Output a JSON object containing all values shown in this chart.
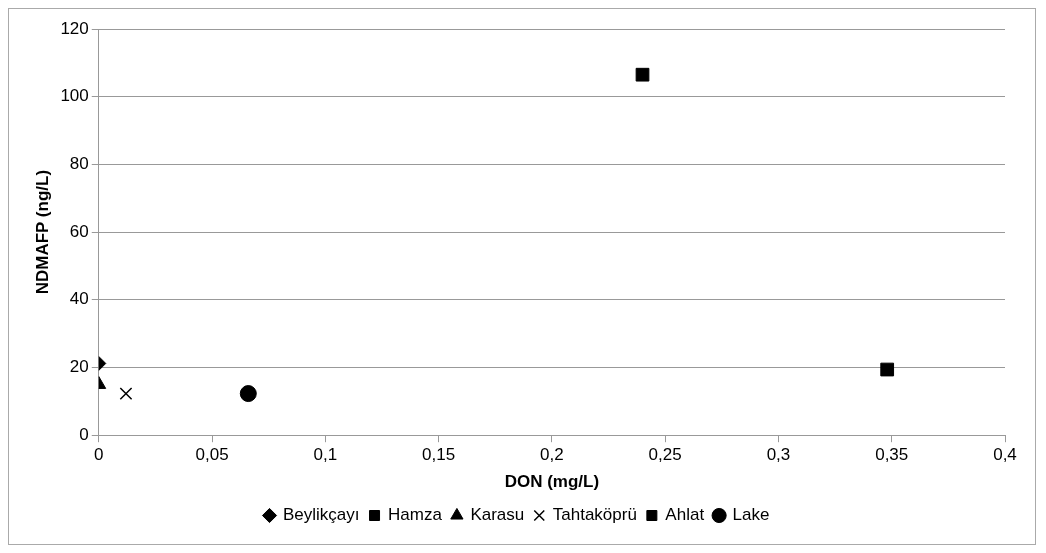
{
  "chart_data": {
    "type": "scatter",
    "xlabel": "DON (mg/L)",
    "ylabel": "NDMAFP (ng/L)",
    "xlim": [
      0,
      0.4
    ],
    "xticks": [
      0,
      {
        "value": 0.05,
        "label": "0,05"
      },
      {
        "value": 0.1,
        "label": "0,1"
      },
      {
        "value": 0.15,
        "label": "0,15"
      },
      {
        "value": 0.2,
        "label": "0,2"
      },
      {
        "value": 0.25,
        "label": "0,25"
      },
      {
        "value": 0.3,
        "label": "0,3"
      },
      {
        "value": 0.35,
        "label": "0,35"
      },
      {
        "value": 0.4,
        "label": "0,4"
      }
    ],
    "ylim": [
      0,
      120
    ],
    "yticks": [
      0,
      20,
      40,
      60,
      80,
      100,
      120
    ],
    "grid": "y",
    "legend": "bottom",
    "series": [
      {
        "name": "Beylikçayı",
        "color": "#000000",
        "marker": "diamond",
        "x": [
          0
        ],
        "values": [
          21.2
        ]
      },
      {
        "name": "Hamza",
        "color": "#000000",
        "marker": "square",
        "x": [
          0.24
        ],
        "values": [
          106.5
        ]
      },
      {
        "name": "Karasu",
        "color": "#000000",
        "marker": "triangle",
        "x": [
          0
        ],
        "values": [
          15
        ]
      },
      {
        "name": "Tahtaköprü",
        "color": "#000000",
        "marker": "cross",
        "x": [
          0.012
        ],
        "values": [
          12.3
        ]
      },
      {
        "name": "Ahlat",
        "color": "#000000",
        "marker": "square",
        "x": [
          0.348
        ],
        "values": [
          19.4
        ]
      },
      {
        "name": "Lake",
        "color": "#000000",
        "marker": "circle",
        "x": [
          0.066
        ],
        "values": [
          12.3
        ]
      }
    ]
  }
}
